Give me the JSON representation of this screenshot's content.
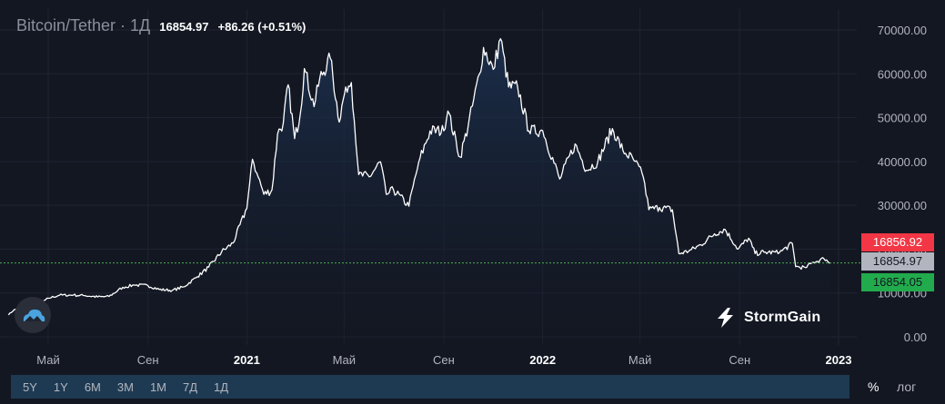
{
  "header": {
    "title": "Bitcoin/Tether · 1Д",
    "price": "16854.97",
    "change": "+86.26 (+0.51%)"
  },
  "brand": {
    "name": "StormGain"
  },
  "price_tags": {
    "high": "16856.92",
    "last": "16854.97",
    "low": "16854.05"
  },
  "bottom_bar": {
    "periods": [
      "5Y",
      "1Y",
      "6M",
      "3M",
      "1M",
      "7Д",
      "1Д"
    ],
    "percent_label": "%",
    "log_label": "лог"
  },
  "colors": {
    "background": "#131722",
    "line": "#ffffff",
    "area_top": "#1c3150",
    "last_price_line": "#4caf50",
    "high_tag": "#f23645",
    "low_tag": "#22ab4c",
    "last_tag": "#b2b5be"
  },
  "chart_data": {
    "type": "area",
    "title": "Bitcoin/Tether",
    "ylim": [
      0,
      72000
    ],
    "y_ticks": [
      "0.00",
      "10000.00",
      "20000.00",
      "30000.00",
      "40000.00",
      "50000.00",
      "60000.00",
      "70000.00"
    ],
    "x_ticks": [
      "Май",
      "Сен",
      "2021",
      "Май",
      "Сен",
      "2022",
      "Май",
      "Сен",
      "2023"
    ],
    "x_tick_dates": [
      "2020-05-01",
      "2020-09-01",
      "2021-01-01",
      "2021-05-01",
      "2021-09-01",
      "2022-01-01",
      "2022-05-01",
      "2022-09-01",
      "2023-01-01"
    ],
    "last_price": 16854.97,
    "series": [
      {
        "name": "BTC/USDT",
        "x": [
          "2020-03-13",
          "2020-03-20",
          "2020-04-01",
          "2020-04-15",
          "2020-05-01",
          "2020-05-15",
          "2020-06-01",
          "2020-06-15",
          "2020-07-01",
          "2020-07-15",
          "2020-08-01",
          "2020-08-15",
          "2020-09-01",
          "2020-09-15",
          "2020-10-01",
          "2020-10-15",
          "2020-11-01",
          "2020-11-15",
          "2020-12-01",
          "2020-12-15",
          "2021-01-01",
          "2021-01-08",
          "2021-01-15",
          "2021-01-22",
          "2021-02-01",
          "2021-02-08",
          "2021-02-15",
          "2021-02-21",
          "2021-03-01",
          "2021-03-08",
          "2021-03-13",
          "2021-03-25",
          "2021-04-01",
          "2021-04-14",
          "2021-04-25",
          "2021-05-03",
          "2021-05-10",
          "2021-05-19",
          "2021-06-01",
          "2021-06-15",
          "2021-06-22",
          "2021-07-01",
          "2021-07-20",
          "2021-08-01",
          "2021-08-15",
          "2021-09-01",
          "2021-09-06",
          "2021-09-21",
          "2021-10-01",
          "2021-10-15",
          "2021-10-20",
          "2021-11-01",
          "2021-11-10",
          "2021-11-20",
          "2021-12-01",
          "2021-12-15",
          "2022-01-01",
          "2022-01-22",
          "2022-02-10",
          "2022-02-24",
          "2022-03-10",
          "2022-03-28",
          "2022-04-10",
          "2022-04-25",
          "2022-05-05",
          "2022-05-12",
          "2022-05-25",
          "2022-06-10",
          "2022-06-18",
          "2022-06-30",
          "2022-07-15",
          "2022-08-01",
          "2022-08-14",
          "2022-08-30",
          "2022-09-12",
          "2022-09-20",
          "2022-10-01",
          "2022-10-20",
          "2022-11-05",
          "2022-11-09",
          "2022-11-21",
          "2022-12-01",
          "2022-12-14",
          "2022-12-22"
        ],
        "values": [
          5000,
          6200,
          6600,
          6900,
          8800,
          9500,
          9500,
          9400,
          9100,
          9200,
          11300,
          11800,
          11700,
          10800,
          10600,
          11400,
          13700,
          15900,
          19400,
          21400,
          29300,
          40500,
          36500,
          32500,
          33500,
          46300,
          48800,
          57500,
          45200,
          50900,
          61200,
          52500,
          59000,
          63500,
          49000,
          57000,
          58000,
          37000,
          36500,
          39900,
          32500,
          33500,
          29800,
          39800,
          47000,
          47000,
          51500,
          41000,
          48000,
          60000,
          66000,
          61000,
          68000,
          57000,
          57000,
          47000,
          47000,
          36000,
          44000,
          38000,
          40000,
          47500,
          42500,
          40000,
          36500,
          29000,
          29500,
          29000,
          19000,
          19500,
          21000,
          23500,
          24500,
          20000,
          22500,
          19000,
          19300,
          19200,
          21300,
          16000,
          15800,
          17000,
          17800,
          16855
        ]
      }
    ]
  }
}
